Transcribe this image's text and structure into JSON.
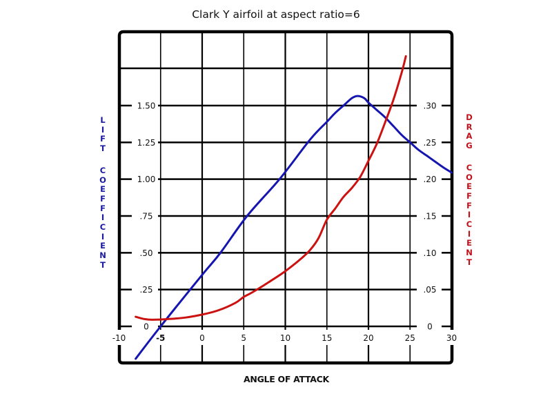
{
  "chart_data": {
    "type": "line",
    "title": "Clark Y airfoil at aspect ratio=6",
    "xlabel": "ANGLE OF ATTACK",
    "ylabel": "LIFT COEFFICIENT",
    "y2label": "DRAG COEFFICIENT",
    "xlim": [
      -10,
      30
    ],
    "ylim": [
      0,
      1.5
    ],
    "y2lim": [
      0,
      0.3
    ],
    "x_ticks": [
      "-10",
      "-5",
      "0",
      "5",
      "10",
      "15",
      "20",
      "25",
      "30"
    ],
    "y_ticks": [
      "0",
      ".25",
      ".50",
      ".75",
      "1.00",
      "1.25",
      "1.50"
    ],
    "y2_ticks": [
      "0",
      ".05",
      ".10",
      ".15",
      ".20",
      ".25",
      ".30"
    ],
    "grid": true,
    "series": [
      {
        "name": "Lift coefficient",
        "axis": "left",
        "color": "#1515b0",
        "x": [
          -8,
          -5,
          0,
          2.2,
          5.4,
          9.3,
          13,
          15,
          16,
          17,
          18,
          18.7,
          19.5,
          20,
          21,
          22,
          23,
          24,
          25,
          26,
          27,
          28,
          29,
          30
        ],
        "y": [
          -0.22,
          0,
          0.35,
          0.5,
          0.75,
          1.0,
          1.27,
          1.39,
          1.45,
          1.5,
          1.55,
          1.565,
          1.55,
          1.52,
          1.47,
          1.42,
          1.36,
          1.3,
          1.25,
          1.2,
          1.16,
          1.12,
          1.08,
          1.045
        ]
      },
      {
        "name": "Drag coefficient",
        "axis": "right",
        "color": "#cc1111",
        "x": [
          -8,
          -7,
          -6,
          -4,
          -2,
          0,
          2,
          4,
          5,
          6,
          8,
          10,
          12,
          13,
          14,
          15,
          16,
          17,
          18,
          19,
          20,
          21,
          22,
          23,
          24,
          24.5
        ],
        "y": [
          0.013,
          0.01,
          0.009,
          0.01,
          0.012,
          0.016,
          0.022,
          0.032,
          0.04,
          0.046,
          0.06,
          0.075,
          0.093,
          0.104,
          0.12,
          0.145,
          0.16,
          0.176,
          0.188,
          0.203,
          0.225,
          0.248,
          0.277,
          0.308,
          0.345,
          0.367
        ]
      }
    ]
  },
  "labels": {
    "title": "Clark Y airfoil at aspect ratio=6",
    "xlabel": "ANGLE OF ATTACK",
    "lift_word1": [
      "L",
      "I",
      "F",
      "T"
    ],
    "lift_word2": [
      "C",
      "O",
      "E",
      "F",
      "F",
      "I",
      "C",
      "I",
      "E",
      "N",
      "T"
    ],
    "drag_word1": [
      "D",
      "R",
      "A",
      "G"
    ],
    "drag_word2": [
      "C",
      "O",
      "E",
      "F",
      "F",
      "I",
      "C",
      "I",
      "E",
      "N",
      "T"
    ]
  },
  "colors": {
    "lift": "#1515b0",
    "drag": "#cc1111",
    "lift_label": "#1a1aa0",
    "drag_label": "#c0101a",
    "grid": "#000000"
  }
}
